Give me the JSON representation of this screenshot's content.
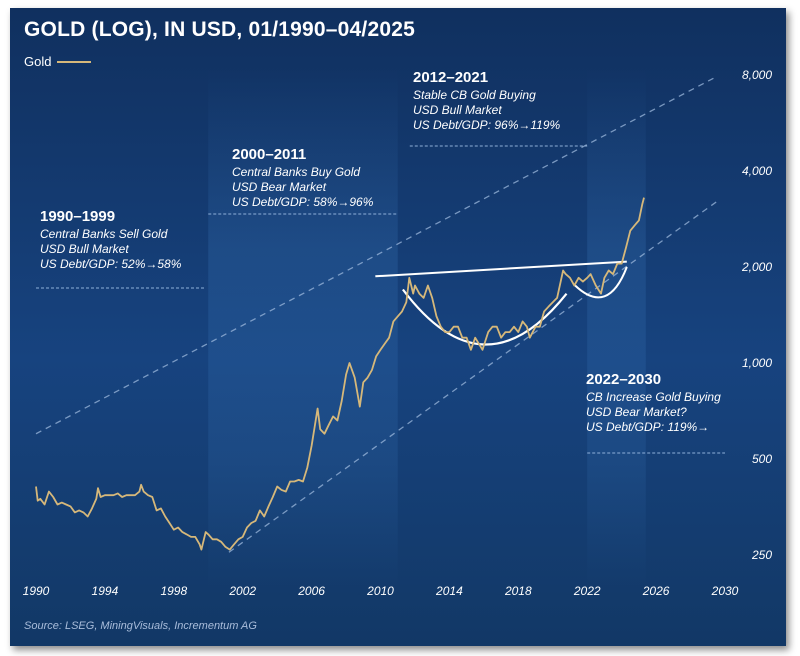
{
  "title": "GOLD (LOG), IN USD, 01/1990–04/2025",
  "legend_label": "Gold",
  "source": "Source: LSEG, MiningVisuals, Incrementum AG",
  "colors": {
    "gold_line": "#d6b87a",
    "background_top": "#10305f",
    "background_bottom": "#17437f",
    "band_highlight": "#3f7fc4",
    "annotation_lines": "#ffffff",
    "channel_dashes": "#9db9dd"
  },
  "annotations": [
    {
      "heading": "1990–1999",
      "lines": [
        "Central Banks Sell Gold",
        "USD Bull Market",
        "US Debt/GDP: 52%→58%"
      ]
    },
    {
      "heading": "2000–2011",
      "lines": [
        "Central Banks Buy Gold",
        "USD Bear Market",
        "US Debt/GDP: 58%→96%"
      ]
    },
    {
      "heading": "2012–2021",
      "lines": [
        "Stable CB Gold Buying",
        "USD Bull Market",
        "US Debt/GDP: 96%→119%"
      ]
    },
    {
      "heading": "2022–2030",
      "lines": [
        "CB Increase Gold Buying",
        "USD Bear Market?",
        "US Debt/GDP: 119%→"
      ]
    }
  ],
  "chart_data": {
    "type": "line",
    "y_scale": "log",
    "ylim": [
      220,
      8000
    ],
    "xlim": [
      1990,
      2030
    ],
    "x_ticks": [
      "1990",
      "1994",
      "1998",
      "2002",
      "2006",
      "2010",
      "2014",
      "2018",
      "2022",
      "2026",
      "2030"
    ],
    "y_ticks": [
      {
        "value": 250,
        "label": "250"
      },
      {
        "value": 500,
        "label": "500"
      },
      {
        "value": 1000,
        "label": "1,000"
      },
      {
        "value": 2000,
        "label": "2,000"
      },
      {
        "value": 4000,
        "label": "4,000"
      },
      {
        "value": 8000,
        "label": "8,000"
      }
    ],
    "y_axis_position": "right",
    "grid": false,
    "legend_position": "top-left",
    "series": [
      {
        "name": "Gold",
        "x": [
          1990.0,
          1990.1,
          1990.25,
          1990.5,
          1990.75,
          1991.0,
          1991.25,
          1991.5,
          1991.75,
          1992.0,
          1992.25,
          1992.5,
          1992.75,
          1993.0,
          1993.25,
          1993.5,
          1993.6,
          1993.75,
          1994.0,
          1994.25,
          1994.5,
          1994.75,
          1995.0,
          1995.25,
          1995.5,
          1995.75,
          1996.0,
          1996.1,
          1996.25,
          1996.5,
          1996.75,
          1997.0,
          1997.25,
          1997.5,
          1997.75,
          1998.0,
          1998.25,
          1998.5,
          1998.75,
          1999.0,
          1999.25,
          1999.5,
          1999.6,
          1999.75,
          1999.85,
          2000.0,
          2000.25,
          2000.5,
          2000.75,
          2001.0,
          2001.25,
          2001.5,
          2001.75,
          2002.0,
          2002.25,
          2002.5,
          2002.75,
          2003.0,
          2003.25,
          2003.5,
          2003.75,
          2004.0,
          2004.25,
          2004.5,
          2004.75,
          2005.0,
          2005.25,
          2005.5,
          2005.75,
          2006.0,
          2006.35,
          2006.5,
          2006.75,
          2007.0,
          2007.25,
          2007.5,
          2007.75,
          2008.0,
          2008.2,
          2008.5,
          2008.8,
          2009.0,
          2009.25,
          2009.5,
          2009.75,
          2010.0,
          2010.25,
          2010.5,
          2010.75,
          2011.0,
          2011.25,
          2011.5,
          2011.67,
          2011.9,
          2012.0,
          2012.25,
          2012.5,
          2012.75,
          2013.0,
          2013.25,
          2013.5,
          2013.75,
          2014.0,
          2014.25,
          2014.5,
          2014.75,
          2015.0,
          2015.25,
          2015.5,
          2015.92,
          2016.25,
          2016.5,
          2016.75,
          2017.0,
          2017.25,
          2017.5,
          2017.75,
          2018.0,
          2018.25,
          2018.5,
          2018.67,
          2019.0,
          2019.25,
          2019.5,
          2019.75,
          2020.0,
          2020.25,
          2020.6,
          2020.75,
          2021.0,
          2021.25,
          2021.5,
          2021.75,
          2022.0,
          2022.2,
          2022.5,
          2022.8,
          2023.0,
          2023.25,
          2023.5,
          2023.75,
          2024.0,
          2024.25,
          2024.5,
          2024.75,
          2025.0,
          2025.2,
          2025.3
        ],
        "values": [
          410,
          370,
          375,
          360,
          395,
          380,
          360,
          365,
          360,
          355,
          340,
          345,
          340,
          330,
          350,
          375,
          405,
          380,
          385,
          385,
          385,
          390,
          380,
          385,
          385,
          385,
          395,
          415,
          395,
          385,
          380,
          345,
          350,
          330,
          315,
          300,
          305,
          295,
          290,
          285,
          285,
          270,
          260,
          280,
          295,
          290,
          280,
          280,
          275,
          265,
          260,
          270,
          280,
          285,
          305,
          315,
          320,
          345,
          330,
          355,
          380,
          410,
          400,
          395,
          425,
          425,
          430,
          425,
          470,
          550,
          720,
          620,
          600,
          640,
          680,
          660,
          760,
          920,
          1000,
          900,
          730,
          870,
          900,
          950,
          1050,
          1100,
          1150,
          1200,
          1350,
          1400,
          1450,
          1550,
          1850,
          1650,
          1750,
          1650,
          1600,
          1750,
          1600,
          1400,
          1300,
          1250,
          1250,
          1300,
          1300,
          1200,
          1200,
          1100,
          1200,
          1100,
          1250,
          1300,
          1300,
          1200,
          1250,
          1250,
          1300,
          1250,
          1350,
          1300,
          1200,
          1300,
          1300,
          1450,
          1500,
          1550,
          1600,
          1950,
          1900,
          1850,
          1750,
          1850,
          1800,
          1850,
          1900,
          1750,
          1650,
          1850,
          1950,
          1900,
          2050,
          2050,
          2300,
          2600,
          2700,
          2800,
          3150,
          3300
        ]
      }
    ]
  }
}
